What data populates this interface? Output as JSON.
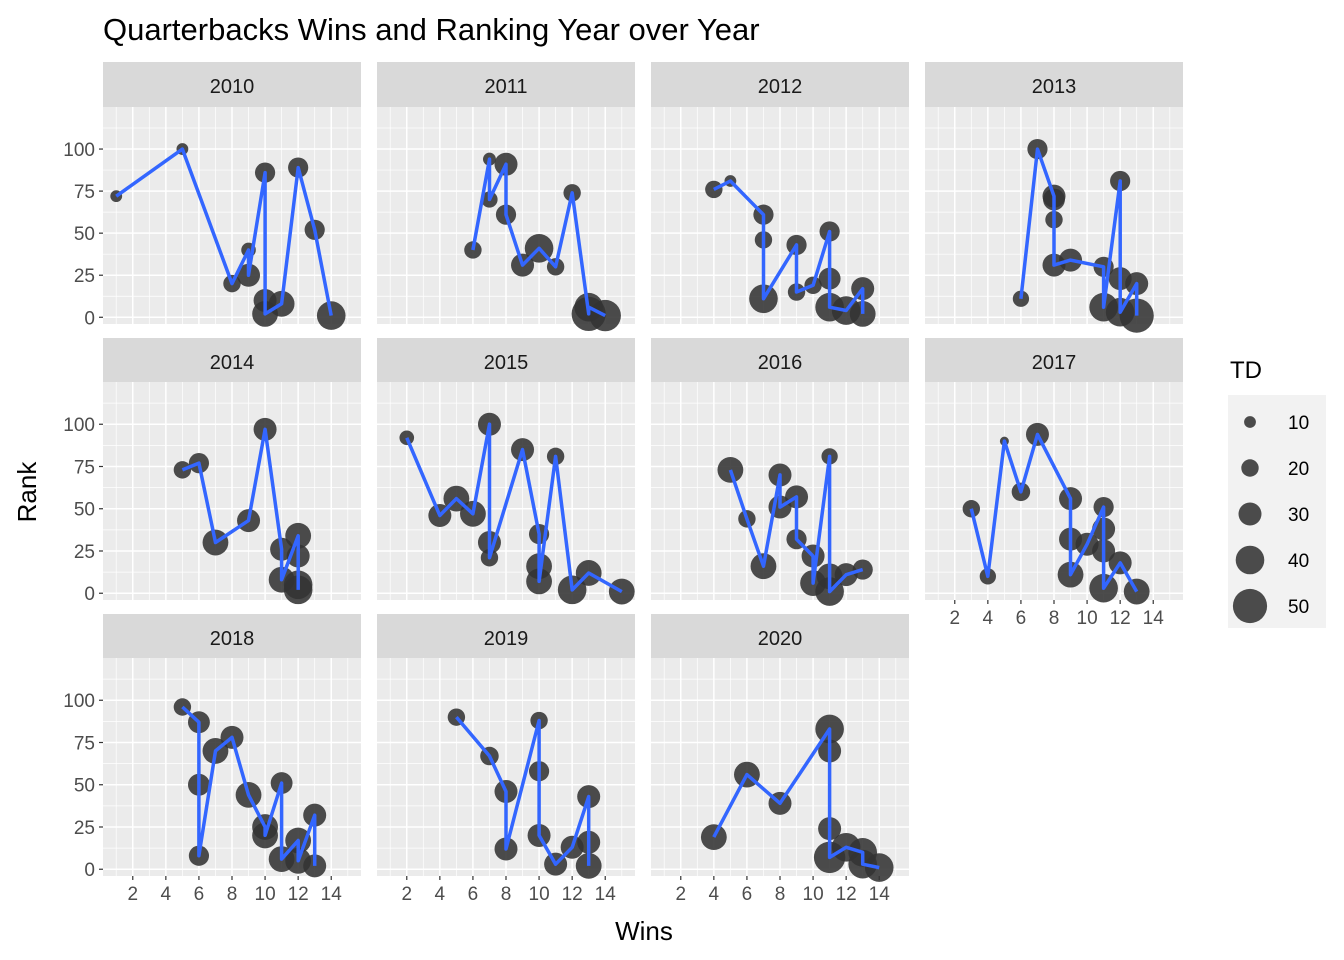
{
  "chart_data": {
    "type": "scatter",
    "title": "Quarterbacks Wins and Ranking Year over Year",
    "xlabel": "Wins",
    "ylabel": "Rank",
    "xlim": [
      0.2,
      15.8
    ],
    "ylim": [
      -4,
      125
    ],
    "x_ticks": [
      2,
      4,
      6,
      8,
      10,
      12,
      14
    ],
    "y_ticks": [
      0,
      25,
      50,
      75,
      100
    ],
    "grid": true,
    "line_color": "#3366FF",
    "point_color": "#333333",
    "legend": {
      "title": "TD",
      "position": "right",
      "entries": [
        10,
        20,
        30,
        40,
        50
      ]
    },
    "panels": [
      {
        "label": "2010",
        "points": [
          {
            "x": 1,
            "y": 72,
            "td": 10
          },
          {
            "x": 5,
            "y": 100,
            "td": 10
          },
          {
            "x": 8,
            "y": 20,
            "td": 20
          },
          {
            "x": 9,
            "y": 40,
            "td": 15
          },
          {
            "x": 9,
            "y": 25,
            "td": 30
          },
          {
            "x": 10,
            "y": 86,
            "td": 25
          },
          {
            "x": 10,
            "y": 10,
            "td": 30
          },
          {
            "x": 10,
            "y": 2,
            "td": 35
          },
          {
            "x": 11,
            "y": 8,
            "td": 35
          },
          {
            "x": 12,
            "y": 89,
            "td": 25
          },
          {
            "x": 13,
            "y": 52,
            "td": 25
          },
          {
            "x": 14,
            "y": 1,
            "td": 40
          }
        ]
      },
      {
        "label": "2011",
        "points": [
          {
            "x": 6,
            "y": 40,
            "td": 20
          },
          {
            "x": 7,
            "y": 94,
            "td": 12
          },
          {
            "x": 7,
            "y": 70,
            "td": 18
          },
          {
            "x": 8,
            "y": 91,
            "td": 30
          },
          {
            "x": 8,
            "y": 61,
            "td": 25
          },
          {
            "x": 9,
            "y": 31,
            "td": 30
          },
          {
            "x": 10,
            "y": 41,
            "td": 40
          },
          {
            "x": 11,
            "y": 30,
            "td": 20
          },
          {
            "x": 12,
            "y": 74,
            "td": 20
          },
          {
            "x": 13,
            "y": 2,
            "td": 50
          },
          {
            "x": 13,
            "y": 6,
            "td": 40
          },
          {
            "x": 14,
            "y": 1,
            "td": 45
          }
        ]
      },
      {
        "label": "2012",
        "points": [
          {
            "x": 4,
            "y": 76,
            "td": 20
          },
          {
            "x": 5,
            "y": 81,
            "td": 10
          },
          {
            "x": 7,
            "y": 61,
            "td": 25
          },
          {
            "x": 7,
            "y": 46,
            "td": 20
          },
          {
            "x": 7,
            "y": 11,
            "td": 40
          },
          {
            "x": 9,
            "y": 43,
            "td": 25
          },
          {
            "x": 9,
            "y": 15,
            "td": 20
          },
          {
            "x": 10,
            "y": 19,
            "td": 20
          },
          {
            "x": 11,
            "y": 51,
            "td": 25
          },
          {
            "x": 11,
            "y": 23,
            "td": 28
          },
          {
            "x": 11,
            "y": 6,
            "td": 40
          },
          {
            "x": 12,
            "y": 4,
            "td": 40
          },
          {
            "x": 13,
            "y": 17,
            "td": 30
          },
          {
            "x": 13,
            "y": 2,
            "td": 35
          }
        ]
      },
      {
        "label": "2013",
        "points": [
          {
            "x": 6,
            "y": 11,
            "td": 18
          },
          {
            "x": 7,
            "y": 100,
            "td": 25
          },
          {
            "x": 8,
            "y": 72,
            "td": 30
          },
          {
            "x": 8,
            "y": 70,
            "td": 28
          },
          {
            "x": 8,
            "y": 58,
            "td": 20
          },
          {
            "x": 8,
            "y": 31,
            "td": 30
          },
          {
            "x": 9,
            "y": 34,
            "td": 30
          },
          {
            "x": 11,
            "y": 30,
            "td": 25
          },
          {
            "x": 11,
            "y": 6,
            "td": 40
          },
          {
            "x": 12,
            "y": 81,
            "td": 25
          },
          {
            "x": 12,
            "y": 23,
            "td": 30
          },
          {
            "x": 12,
            "y": 3,
            "td": 40
          },
          {
            "x": 13,
            "y": 20,
            "td": 30
          },
          {
            "x": 13,
            "y": 1,
            "td": 50
          }
        ]
      },
      {
        "label": "2014",
        "points": [
          {
            "x": 5,
            "y": 73,
            "td": 20
          },
          {
            "x": 6,
            "y": 77,
            "td": 25
          },
          {
            "x": 7,
            "y": 30,
            "td": 35
          },
          {
            "x": 9,
            "y": 43,
            "td": 30
          },
          {
            "x": 10,
            "y": 97,
            "td": 30
          },
          {
            "x": 11,
            "y": 26,
            "td": 30
          },
          {
            "x": 11,
            "y": 8,
            "td": 35
          },
          {
            "x": 12,
            "y": 34,
            "td": 35
          },
          {
            "x": 12,
            "y": 22,
            "td": 30
          },
          {
            "x": 12,
            "y": 5,
            "td": 40
          },
          {
            "x": 12,
            "y": 2,
            "td": 40
          }
        ]
      },
      {
        "label": "2015",
        "points": [
          {
            "x": 2,
            "y": 92,
            "td": 15
          },
          {
            "x": 4,
            "y": 46,
            "td": 30
          },
          {
            "x": 5,
            "y": 56,
            "td": 35
          },
          {
            "x": 6,
            "y": 47,
            "td": 35
          },
          {
            "x": 7,
            "y": 100,
            "td": 30
          },
          {
            "x": 7,
            "y": 30,
            "td": 30
          },
          {
            "x": 7,
            "y": 21,
            "td": 20
          },
          {
            "x": 9,
            "y": 85,
            "td": 30
          },
          {
            "x": 10,
            "y": 35,
            "td": 25
          },
          {
            "x": 10,
            "y": 16,
            "td": 35
          },
          {
            "x": 10,
            "y": 7,
            "td": 35
          },
          {
            "x": 11,
            "y": 81,
            "td": 20
          },
          {
            "x": 12,
            "y": 2,
            "td": 40
          },
          {
            "x": 13,
            "y": 12,
            "td": 35
          },
          {
            "x": 15,
            "y": 1,
            "td": 35
          }
        ]
      },
      {
        "label": "2016",
        "points": [
          {
            "x": 5,
            "y": 73,
            "td": 35
          },
          {
            "x": 6,
            "y": 44,
            "td": 20
          },
          {
            "x": 7,
            "y": 16,
            "td": 35
          },
          {
            "x": 8,
            "y": 70,
            "td": 30
          },
          {
            "x": 8,
            "y": 51,
            "td": 30
          },
          {
            "x": 9,
            "y": 57,
            "td": 30
          },
          {
            "x": 9,
            "y": 32,
            "td": 25
          },
          {
            "x": 10,
            "y": 22,
            "td": 30
          },
          {
            "x": 10,
            "y": 6,
            "td": 35
          },
          {
            "x": 11,
            "y": 81,
            "td": 18
          },
          {
            "x": 11,
            "y": 10,
            "td": 35
          },
          {
            "x": 11,
            "y": 1,
            "td": 40
          },
          {
            "x": 12,
            "y": 11,
            "td": 30
          },
          {
            "x": 13,
            "y": 14,
            "td": 25
          }
        ]
      },
      {
        "label": "2017",
        "points": [
          {
            "x": 3,
            "y": 50,
            "td": 20
          },
          {
            "x": 4,
            "y": 10,
            "td": 18
          },
          {
            "x": 5,
            "y": 90,
            "td": 5
          },
          {
            "x": 6,
            "y": 60,
            "td": 22
          },
          {
            "x": 7,
            "y": 94,
            "td": 30
          },
          {
            "x": 9,
            "y": 56,
            "td": 30
          },
          {
            "x": 9,
            "y": 32,
            "td": 30
          },
          {
            "x": 9,
            "y": 11,
            "td": 35
          },
          {
            "x": 10,
            "y": 29,
            "td": 30
          },
          {
            "x": 11,
            "y": 51,
            "td": 25
          },
          {
            "x": 11,
            "y": 38,
            "td": 30
          },
          {
            "x": 11,
            "y": 25,
            "td": 30
          },
          {
            "x": 11,
            "y": 3,
            "td": 40
          },
          {
            "x": 12,
            "y": 18,
            "td": 30
          },
          {
            "x": 13,
            "y": 1,
            "td": 35
          }
        ]
      },
      {
        "label": "2018",
        "points": [
          {
            "x": 5,
            "y": 96,
            "td": 20
          },
          {
            "x": 6,
            "y": 87,
            "td": 28
          },
          {
            "x": 6,
            "y": 50,
            "td": 28
          },
          {
            "x": 6,
            "y": 8,
            "td": 25
          },
          {
            "x": 7,
            "y": 70,
            "td": 35
          },
          {
            "x": 8,
            "y": 78,
            "td": 30
          },
          {
            "x": 9,
            "y": 44,
            "td": 35
          },
          {
            "x": 10,
            "y": 25,
            "td": 35
          },
          {
            "x": 10,
            "y": 20,
            "td": 35
          },
          {
            "x": 11,
            "y": 51,
            "td": 28
          },
          {
            "x": 11,
            "y": 6,
            "td": 35
          },
          {
            "x": 12,
            "y": 17,
            "td": 35
          },
          {
            "x": 12,
            "y": 5,
            "td": 35
          },
          {
            "x": 13,
            "y": 32,
            "td": 30
          },
          {
            "x": 13,
            "y": 2,
            "td": 30
          }
        ]
      },
      {
        "label": "2019",
        "points": [
          {
            "x": 5,
            "y": 90,
            "td": 20
          },
          {
            "x": 7,
            "y": 67,
            "td": 22
          },
          {
            "x": 8,
            "y": 46,
            "td": 30
          },
          {
            "x": 8,
            "y": 12,
            "td": 30
          },
          {
            "x": 10,
            "y": 88,
            "td": 20
          },
          {
            "x": 10,
            "y": 58,
            "td": 25
          },
          {
            "x": 10,
            "y": 20,
            "td": 30
          },
          {
            "x": 11,
            "y": 3,
            "td": 30
          },
          {
            "x": 12,
            "y": 13,
            "td": 30
          },
          {
            "x": 13,
            "y": 43,
            "td": 30
          },
          {
            "x": 13,
            "y": 16,
            "td": 30
          },
          {
            "x": 13,
            "y": 2,
            "td": 35
          }
        ]
      },
      {
        "label": "2020",
        "points": [
          {
            "x": 4,
            "y": 19,
            "td": 35
          },
          {
            "x": 6,
            "y": 56,
            "td": 35
          },
          {
            "x": 8,
            "y": 39,
            "td": 30
          },
          {
            "x": 11,
            "y": 83,
            "td": 40
          },
          {
            "x": 11,
            "y": 70,
            "td": 30
          },
          {
            "x": 11,
            "y": 24,
            "td": 30
          },
          {
            "x": 11,
            "y": 7,
            "td": 45
          },
          {
            "x": 12,
            "y": 13,
            "td": 40
          },
          {
            "x": 13,
            "y": 10,
            "td": 40
          },
          {
            "x": 13,
            "y": 3,
            "td": 40
          },
          {
            "x": 14,
            "y": 1,
            "td": 40
          }
        ]
      }
    ]
  }
}
